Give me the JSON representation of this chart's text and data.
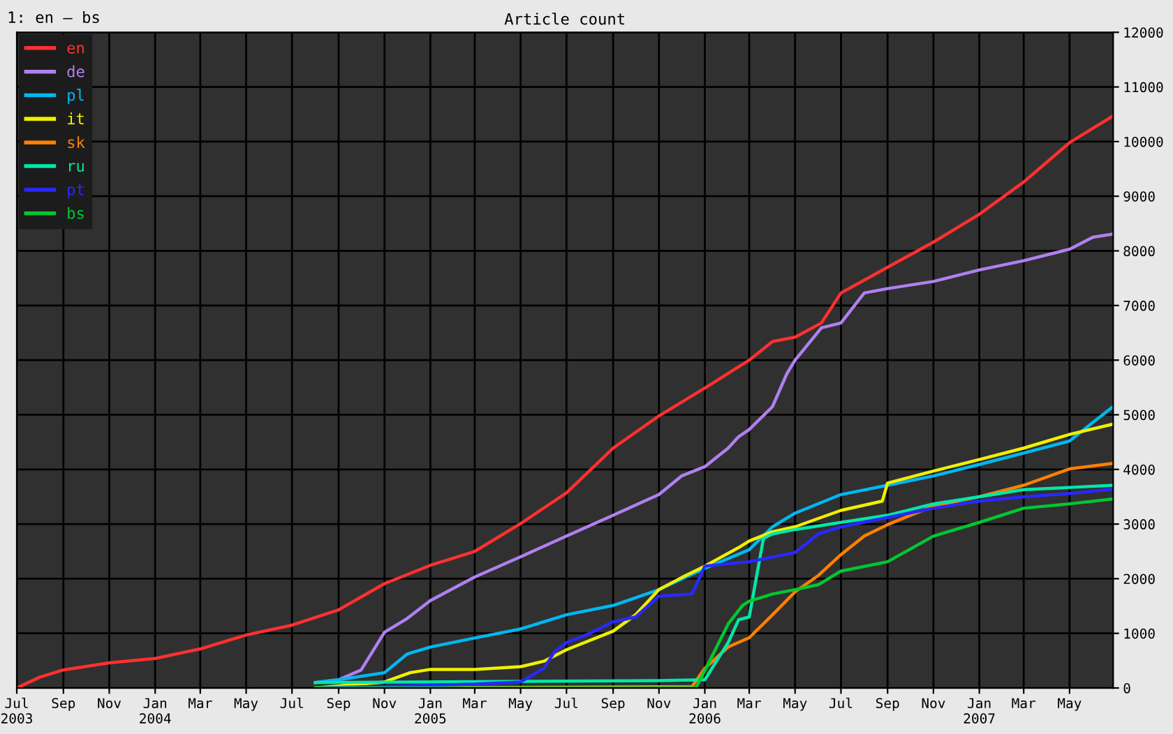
{
  "chart_data": {
    "type": "line",
    "title": "Article count",
    "annotations": [
      "1: en – bs"
    ],
    "legend": "top left",
    "grid": true,
    "line_style": "solid",
    "marker": "none",
    "xlim": [
      "2003-07-01",
      "2007-06-28"
    ],
    "ylim": [
      0,
      12000
    ],
    "yticks": [
      0,
      1000,
      2000,
      3000,
      4000,
      5000,
      6000,
      7000,
      8000,
      9000,
      10000,
      11000,
      12000
    ],
    "xticks": [
      {
        "value": "2003-07-01",
        "label": "Jul\n2003"
      },
      {
        "value": "2003-09-01",
        "label": "Sep"
      },
      {
        "value": "2003-11-01",
        "label": "Nov"
      },
      {
        "value": "2004-01-01",
        "label": "Jan\n2004"
      },
      {
        "value": "2004-03-01",
        "label": "Mar"
      },
      {
        "value": "2004-05-01",
        "label": "May"
      },
      {
        "value": "2004-07-01",
        "label": "Jul"
      },
      {
        "value": "2004-09-01",
        "label": "Sep"
      },
      {
        "value": "2004-11-01",
        "label": "Nov"
      },
      {
        "value": "2005-01-01",
        "label": "Jan\n2005"
      },
      {
        "value": "2005-03-01",
        "label": "Mar"
      },
      {
        "value": "2005-05-01",
        "label": "May"
      },
      {
        "value": "2005-07-01",
        "label": "Jul"
      },
      {
        "value": "2005-09-01",
        "label": "Sep"
      },
      {
        "value": "2005-11-01",
        "label": "Nov"
      },
      {
        "value": "2006-01-01",
        "label": "Jan\n2006"
      },
      {
        "value": "2006-03-01",
        "label": "Mar"
      },
      {
        "value": "2006-05-01",
        "label": "May"
      },
      {
        "value": "2006-07-01",
        "label": "Jul"
      },
      {
        "value": "2006-09-01",
        "label": "Sep"
      },
      {
        "value": "2006-11-01",
        "label": "Nov"
      },
      {
        "value": "2007-01-01",
        "label": "Jan\n2007"
      },
      {
        "value": "2007-03-01",
        "label": "Mar"
      },
      {
        "value": "2007-05-01",
        "label": "May"
      }
    ],
    "series": [
      {
        "name": "en",
        "color": "#ff3030",
        "x": [
          "2003-07-01",
          "2003-08-01",
          "2003-09-01",
          "2003-11-01",
          "2004-01-01",
          "2004-03-01",
          "2004-05-01",
          "2004-07-01",
          "2004-09-01",
          "2004-11-01",
          "2005-01-01",
          "2005-03-01",
          "2005-05-01",
          "2005-07-01",
          "2005-08-01",
          "2005-09-01",
          "2005-11-01",
          "2006-01-01",
          "2006-03-01",
          "2006-04-01",
          "2006-05-01",
          "2006-06-05",
          "2006-07-01",
          "2006-09-01",
          "2006-11-01",
          "2007-01-01",
          "2007-03-01",
          "2007-05-01",
          "2007-06-28"
        ],
        "values": [
          0,
          200,
          330,
          460,
          540,
          715,
          970,
          1150,
          1430,
          1910,
          2245,
          2500,
          3010,
          3570,
          3980,
          4390,
          4980,
          5490,
          6000,
          6340,
          6420,
          6680,
          7230,
          7700,
          8160,
          8670,
          9260,
          9980,
          10470
        ]
      },
      {
        "name": "de",
        "color": "#b080f0",
        "x": [
          "2004-08-01",
          "2004-09-01",
          "2004-10-01",
          "2004-11-01",
          "2004-12-01",
          "2005-01-01",
          "2005-03-01",
          "2005-05-01",
          "2005-07-01",
          "2005-09-01",
          "2005-11-01",
          "2005-12-01",
          "2006-01-01",
          "2006-02-01",
          "2006-02-15",
          "2006-03-01",
          "2006-04-01",
          "2006-04-20",
          "2006-05-01",
          "2006-06-05",
          "2006-07-01",
          "2006-08-01",
          "2006-09-01",
          "2006-11-01",
          "2007-01-01",
          "2007-03-01",
          "2007-05-01",
          "2007-06-01",
          "2007-06-28"
        ],
        "values": [
          100,
          150,
          330,
          1020,
          1270,
          1600,
          2030,
          2400,
          2780,
          3160,
          3540,
          3880,
          4050,
          4390,
          4600,
          4730,
          5150,
          5750,
          6000,
          6590,
          6680,
          7230,
          7310,
          7440,
          7650,
          7820,
          8030,
          8250,
          8310
        ]
      },
      {
        "name": "pl",
        "color": "#00b8f0",
        "x": [
          "2004-08-01",
          "2004-09-01",
          "2004-11-01",
          "2004-12-01",
          "2005-01-01",
          "2005-03-01",
          "2005-05-01",
          "2005-07-01",
          "2005-09-01",
          "2005-11-01",
          "2006-01-01",
          "2006-03-01",
          "2006-04-01",
          "2006-05-01",
          "2006-07-01",
          "2006-09-01",
          "2006-11-01",
          "2007-01-01",
          "2007-03-01",
          "2007-05-01",
          "2007-06-01",
          "2007-06-28"
        ],
        "values": [
          100,
          150,
          280,
          620,
          750,
          915,
          1080,
          1340,
          1510,
          1800,
          2190,
          2530,
          2950,
          3200,
          3540,
          3710,
          3880,
          4090,
          4300,
          4520,
          4860,
          5150
        ]
      },
      {
        "name": "it",
        "color": "#f0f000",
        "x": [
          "2004-08-01",
          "2004-11-01",
          "2004-12-05",
          "2005-01-01",
          "2005-03-01",
          "2005-05-01",
          "2005-06-01",
          "2005-07-01",
          "2005-09-01",
          "2005-10-01",
          "2005-11-01",
          "2005-12-01",
          "2006-01-01",
          "2006-02-15",
          "2006-03-01",
          "2006-04-01",
          "2006-05-01",
          "2006-07-01",
          "2006-08-25",
          "2006-09-01",
          "2006-11-01",
          "2007-01-01",
          "2007-03-01",
          "2007-05-01",
          "2007-06-28"
        ],
        "values": [
          0,
          110,
          280,
          340,
          340,
          390,
          490,
          700,
          1040,
          1340,
          1800,
          2020,
          2230,
          2570,
          2690,
          2860,
          2950,
          3250,
          3420,
          3750,
          3970,
          4180,
          4390,
          4640,
          4830
        ]
      },
      {
        "name": "sk",
        "color": "#ff8000",
        "x": [
          "2004-08-01",
          "2005-12-15",
          "2006-01-01",
          "2006-02-01",
          "2006-03-01",
          "2006-04-01",
          "2006-05-01",
          "2006-06-01",
          "2006-07-01",
          "2006-08-01",
          "2006-09-01",
          "2006-11-01",
          "2007-01-01",
          "2007-03-01",
          "2007-05-01",
          "2007-06-28"
        ],
        "values": [
          0,
          25,
          360,
          750,
          920,
          1340,
          1760,
          2060,
          2440,
          2780,
          2990,
          3330,
          3500,
          3710,
          4010,
          4110
        ]
      },
      {
        "name": "ru",
        "color": "#00e8a8",
        "x": [
          "2004-08-01",
          "2005-11-01",
          "2006-01-01",
          "2006-02-01",
          "2006-02-15",
          "2006-03-01",
          "2006-03-20",
          "2006-04-01",
          "2006-05-01",
          "2006-07-01",
          "2006-09-01",
          "2006-11-01",
          "2007-01-01",
          "2007-03-01",
          "2007-05-01",
          "2007-06-28"
        ],
        "values": [
          100,
          135,
          150,
          830,
          1250,
          1300,
          2740,
          2820,
          2900,
          3030,
          3160,
          3370,
          3500,
          3630,
          3670,
          3710
        ]
      },
      {
        "name": "pt",
        "color": "#2828ff",
        "x": [
          "2004-08-01",
          "2005-03-01",
          "2005-05-01",
          "2005-06-01",
          "2005-06-15",
          "2005-07-01",
          "2005-08-01",
          "2005-09-01",
          "2005-10-01",
          "2005-11-01",
          "2005-12-15",
          "2006-01-01",
          "2006-03-01",
          "2006-05-01",
          "2006-06-01",
          "2006-07-01",
          "2006-09-01",
          "2006-11-01",
          "2007-01-01",
          "2007-03-01",
          "2007-05-01",
          "2007-06-28"
        ],
        "values": [
          0,
          70,
          110,
          360,
          660,
          830,
          1000,
          1210,
          1300,
          1680,
          1720,
          2230,
          2310,
          2480,
          2820,
          2950,
          3120,
          3290,
          3420,
          3500,
          3560,
          3640
        ]
      },
      {
        "name": "bs",
        "color": "#00c830",
        "x": [
          "2004-08-01",
          "2005-12-20",
          "2006-01-01",
          "2006-02-01",
          "2006-02-20",
          "2006-03-01",
          "2006-04-01",
          "2006-05-01",
          "2006-06-01",
          "2006-07-01",
          "2006-09-01",
          "2006-11-01",
          "2007-01-01",
          "2007-03-01",
          "2007-05-01",
          "2007-06-28"
        ],
        "values": [
          0,
          0,
          320,
          1170,
          1510,
          1590,
          1720,
          1800,
          1890,
          2140,
          2310,
          2780,
          3030,
          3290,
          3370,
          3460
        ]
      }
    ]
  }
}
